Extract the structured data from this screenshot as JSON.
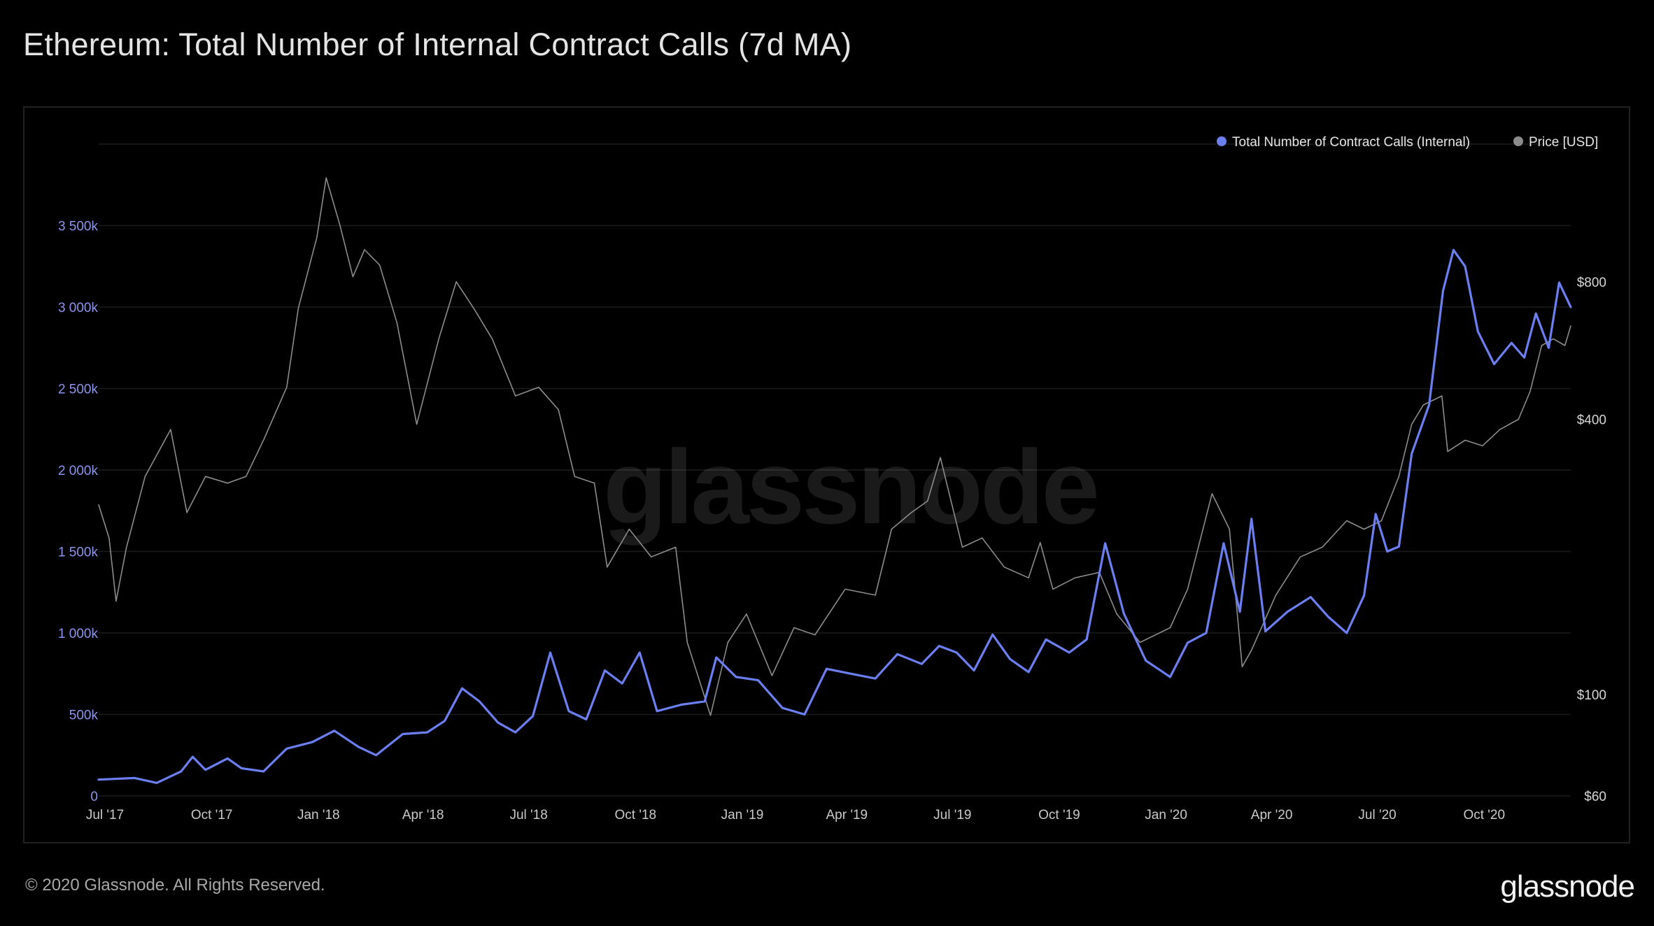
{
  "header": {
    "title": "Ethereum: Total Number of Internal Contract Calls (7d MA)"
  },
  "footer": {
    "copyright": "© 2020 Glassnode. All Rights Reserved.",
    "brand": "glassnode"
  },
  "watermark": "glassnode",
  "legend": [
    {
      "label": "Total Number of Contract Calls (Internal)",
      "color": "#6b7ff0"
    },
    {
      "label": "Price [USD]",
      "color": "#8c8c8c"
    }
  ],
  "chart_data": {
    "type": "line",
    "grid": true,
    "legend_position": "top-right",
    "x_ticks": [
      "Jul '17",
      "Oct '17",
      "Jan '18",
      "Apr '18",
      "Jul '18",
      "Oct '18",
      "Jan '19",
      "Apr '19",
      "Jul '19",
      "Oct '19",
      "Jan '20",
      "Apr '20",
      "Jul '20",
      "Oct '20"
    ],
    "y_left_ticks": [
      "0",
      "500k",
      "1 000k",
      "1 500k",
      "2 000k",
      "2 500k",
      "3 000k",
      "3 500k"
    ],
    "y_right_ticks": [
      "$60",
      "$100",
      "$400",
      "$800"
    ],
    "y_left_range": [
      0,
      4000000
    ],
    "y_right_scale": "log",
    "y_right_range": [
      60,
      1600
    ],
    "series": [
      {
        "name": "Total Number of Contract Calls (Internal)",
        "axis": "left",
        "color": "#6b7ff0",
        "points": [
          [
            "2017-07-01",
            100000
          ],
          [
            "2017-08-01",
            110000
          ],
          [
            "2017-08-20",
            80000
          ],
          [
            "2017-09-10",
            150000
          ],
          [
            "2017-09-20",
            240000
          ],
          [
            "2017-10-01",
            160000
          ],
          [
            "2017-10-20",
            230000
          ],
          [
            "2017-11-01",
            170000
          ],
          [
            "2017-11-20",
            150000
          ],
          [
            "2017-12-10",
            290000
          ],
          [
            "2018-01-01",
            330000
          ],
          [
            "2018-01-20",
            400000
          ],
          [
            "2018-02-10",
            300000
          ],
          [
            "2018-02-25",
            250000
          ],
          [
            "2018-03-20",
            380000
          ],
          [
            "2018-04-10",
            390000
          ],
          [
            "2018-04-25",
            460000
          ],
          [
            "2018-05-10",
            660000
          ],
          [
            "2018-05-25",
            580000
          ],
          [
            "2018-06-10",
            450000
          ],
          [
            "2018-06-25",
            390000
          ],
          [
            "2018-07-10",
            490000
          ],
          [
            "2018-07-25",
            880000
          ],
          [
            "2018-08-10",
            520000
          ],
          [
            "2018-08-25",
            470000
          ],
          [
            "2018-09-10",
            770000
          ],
          [
            "2018-09-25",
            690000
          ],
          [
            "2018-10-10",
            880000
          ],
          [
            "2018-10-25",
            520000
          ],
          [
            "2018-11-15",
            560000
          ],
          [
            "2018-12-05",
            580000
          ],
          [
            "2018-12-15",
            850000
          ],
          [
            "2019-01-01",
            730000
          ],
          [
            "2019-01-20",
            710000
          ],
          [
            "2019-02-10",
            540000
          ],
          [
            "2019-03-01",
            500000
          ],
          [
            "2019-03-20",
            780000
          ],
          [
            "2019-04-10",
            750000
          ],
          [
            "2019-05-01",
            720000
          ],
          [
            "2019-05-20",
            870000
          ],
          [
            "2019-06-10",
            810000
          ],
          [
            "2019-06-25",
            920000
          ],
          [
            "2019-07-10",
            880000
          ],
          [
            "2019-07-25",
            770000
          ],
          [
            "2019-08-10",
            990000
          ],
          [
            "2019-08-25",
            840000
          ],
          [
            "2019-09-10",
            760000
          ],
          [
            "2019-09-25",
            960000
          ],
          [
            "2019-10-15",
            880000
          ],
          [
            "2019-10-30",
            960000
          ],
          [
            "2019-11-15",
            1550000
          ],
          [
            "2019-12-01",
            1120000
          ],
          [
            "2019-12-20",
            830000
          ],
          [
            "2020-01-10",
            730000
          ],
          [
            "2020-01-25",
            940000
          ],
          [
            "2020-02-10",
            1000000
          ],
          [
            "2020-02-25",
            1550000
          ],
          [
            "2020-03-10",
            1130000
          ],
          [
            "2020-03-20",
            1700000
          ],
          [
            "2020-04-01",
            1010000
          ],
          [
            "2020-04-20",
            1130000
          ],
          [
            "2020-05-10",
            1220000
          ],
          [
            "2020-05-25",
            1100000
          ],
          [
            "2020-06-10",
            1000000
          ],
          [
            "2020-06-25",
            1230000
          ],
          [
            "2020-07-05",
            1730000
          ],
          [
            "2020-07-15",
            1500000
          ],
          [
            "2020-07-25",
            1530000
          ],
          [
            "2020-08-05",
            2100000
          ],
          [
            "2020-08-20",
            2400000
          ],
          [
            "2020-09-01",
            3100000
          ],
          [
            "2020-09-10",
            3350000
          ],
          [
            "2020-09-20",
            3250000
          ],
          [
            "2020-10-01",
            2850000
          ],
          [
            "2020-10-15",
            2650000
          ],
          [
            "2020-10-30",
            2780000
          ],
          [
            "2020-11-10",
            2690000
          ],
          [
            "2020-11-20",
            2960000
          ],
          [
            "2020-12-01",
            2750000
          ],
          [
            "2020-12-10",
            3150000
          ],
          [
            "2020-12-20",
            3000000
          ]
        ]
      },
      {
        "name": "Price [USD]",
        "axis": "right",
        "color": "#8c8c8c",
        "points": [
          [
            "2017-07-01",
            260
          ],
          [
            "2017-07-10",
            220
          ],
          [
            "2017-07-16",
            160
          ],
          [
            "2017-07-25",
            210
          ],
          [
            "2017-08-10",
            300
          ],
          [
            "2017-09-01",
            380
          ],
          [
            "2017-09-15",
            250
          ],
          [
            "2017-10-01",
            300
          ],
          [
            "2017-10-20",
            290
          ],
          [
            "2017-11-05",
            300
          ],
          [
            "2017-11-20",
            360
          ],
          [
            "2017-12-10",
            470
          ],
          [
            "2017-12-20",
            700
          ],
          [
            "2018-01-05",
            1000
          ],
          [
            "2018-01-13",
            1350
          ],
          [
            "2018-01-25",
            1060
          ],
          [
            "2018-02-05",
            820
          ],
          [
            "2018-02-15",
            940
          ],
          [
            "2018-02-28",
            870
          ],
          [
            "2018-03-15",
            650
          ],
          [
            "2018-04-01",
            390
          ],
          [
            "2018-04-20",
            600
          ],
          [
            "2018-05-05",
            800
          ],
          [
            "2018-05-20",
            700
          ],
          [
            "2018-06-05",
            600
          ],
          [
            "2018-06-25",
            450
          ],
          [
            "2018-07-15",
            470
          ],
          [
            "2018-08-01",
            420
          ],
          [
            "2018-08-15",
            300
          ],
          [
            "2018-09-01",
            290
          ],
          [
            "2018-09-12",
            190
          ],
          [
            "2018-10-01",
            230
          ],
          [
            "2018-10-20",
            200
          ],
          [
            "2018-11-10",
            210
          ],
          [
            "2018-11-20",
            130
          ],
          [
            "2018-12-10",
            90
          ],
          [
            "2018-12-25",
            130
          ],
          [
            "2019-01-10",
            150
          ],
          [
            "2019-02-01",
            110
          ],
          [
            "2019-02-20",
            140
          ],
          [
            "2019-03-10",
            135
          ],
          [
            "2019-04-05",
            170
          ],
          [
            "2019-05-01",
            165
          ],
          [
            "2019-05-15",
            230
          ],
          [
            "2019-06-01",
            250
          ],
          [
            "2019-06-15",
            265
          ],
          [
            "2019-06-26",
            330
          ],
          [
            "2019-07-15",
            210
          ],
          [
            "2019-08-01",
            220
          ],
          [
            "2019-08-20",
            190
          ],
          [
            "2019-09-10",
            180
          ],
          [
            "2019-09-20",
            215
          ],
          [
            "2019-10-01",
            170
          ],
          [
            "2019-10-20",
            180
          ],
          [
            "2019-11-10",
            185
          ],
          [
            "2019-11-25",
            150
          ],
          [
            "2019-12-15",
            130
          ],
          [
            "2020-01-10",
            140
          ],
          [
            "2020-01-25",
            170
          ],
          [
            "2020-02-15",
            275
          ],
          [
            "2020-03-01",
            230
          ],
          [
            "2020-03-12",
            115
          ],
          [
            "2020-03-20",
            125
          ],
          [
            "2020-04-10",
            165
          ],
          [
            "2020-05-01",
            200
          ],
          [
            "2020-05-20",
            210
          ],
          [
            "2020-06-10",
            240
          ],
          [
            "2020-06-25",
            230
          ],
          [
            "2020-07-10",
            240
          ],
          [
            "2020-07-25",
            300
          ],
          [
            "2020-08-05",
            390
          ],
          [
            "2020-08-15",
            430
          ],
          [
            "2020-08-31",
            450
          ],
          [
            "2020-09-05",
            340
          ],
          [
            "2020-09-20",
            360
          ],
          [
            "2020-10-05",
            350
          ],
          [
            "2020-10-20",
            380
          ],
          [
            "2020-11-05",
            400
          ],
          [
            "2020-11-15",
            460
          ],
          [
            "2020-11-25",
            580
          ],
          [
            "2020-12-05",
            600
          ],
          [
            "2020-12-15",
            580
          ],
          [
            "2020-12-20",
            640
          ]
        ]
      }
    ]
  }
}
